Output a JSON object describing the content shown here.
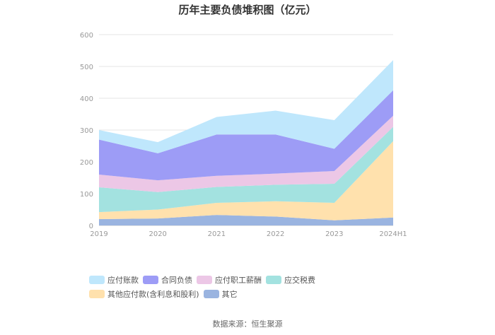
{
  "title": "历年主要负债堆积图（亿元）",
  "source": "数据来源：恒生聚源",
  "chart_data": {
    "type": "area",
    "stacked": true,
    "title": "历年主要负债堆积图（亿元）",
    "categories": [
      "2019",
      "2020",
      "2021",
      "2022",
      "2023",
      "2024H1"
    ],
    "ylim": [
      0,
      600
    ],
    "yticks": [
      0,
      100,
      200,
      300,
      400,
      500,
      600
    ],
    "grid": true,
    "legend_position": "bottom",
    "series": [
      {
        "name": "其它",
        "color": "#9ab4e0",
        "values": [
          20,
          22,
          33,
          28,
          16,
          25
        ]
      },
      {
        "name": "其他应付款(含利息和股利)",
        "color": "#ffe1ad",
        "values": [
          22,
          28,
          38,
          48,
          55,
          240
        ]
      },
      {
        "name": "应交税费",
        "color": "#a3e2e0",
        "values": [
          78,
          55,
          50,
          52,
          60,
          45
        ]
      },
      {
        "name": "应付职工薪酬",
        "color": "#ecc7e6",
        "values": [
          40,
          37,
          35,
          35,
          40,
          35
        ]
      },
      {
        "name": "合同负债",
        "color": "#9d9cf6",
        "values": [
          110,
          85,
          130,
          123,
          70,
          80
        ]
      },
      {
        "name": "应付账款",
        "color": "#bfe7fc",
        "values": [
          30,
          35,
          55,
          75,
          90,
          95
        ]
      }
    ],
    "legend_order": [
      "应付账款",
      "合同负债",
      "应付职工薪酬",
      "应交税费",
      "其他应付款(含利息和股利)",
      "其它"
    ]
  }
}
